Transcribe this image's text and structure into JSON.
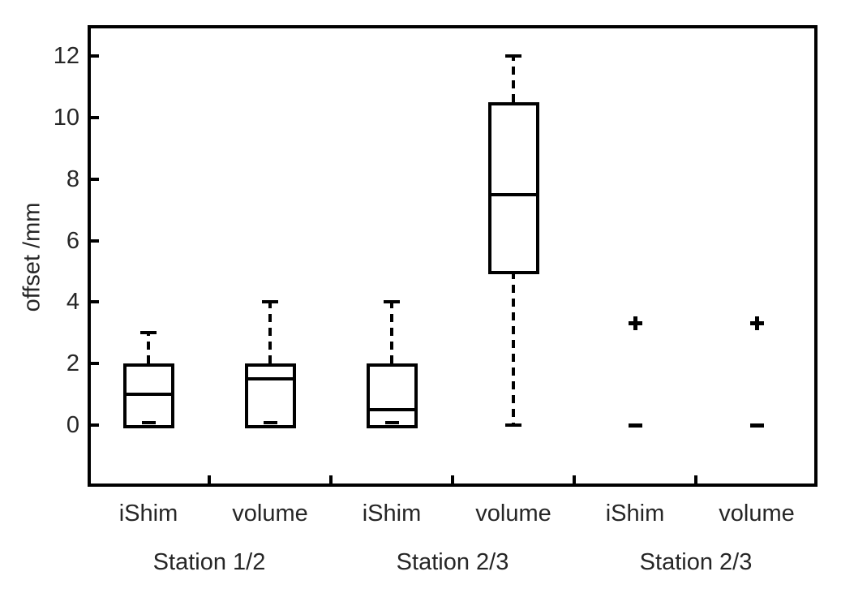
{
  "figure": {
    "background": "#ffffff",
    "line_color": "#000000",
    "text_color": "#262626"
  },
  "chart_data": {
    "type": "boxplot",
    "title": "",
    "ylabel": "offset /mm",
    "xlabel": "",
    "ylim": [
      -2,
      13
    ],
    "yticks": [
      0,
      2,
      4,
      6,
      8,
      10,
      12
    ],
    "grid": false,
    "legend": "none",
    "categories": [
      "iShim",
      "volume",
      "iShim",
      "volume",
      "iShim",
      "volume"
    ],
    "groups": [
      {
        "label": "Station 1/2",
        "span": [
          0,
          1
        ]
      },
      {
        "label": "Station 2/3",
        "span": [
          2,
          3
        ]
      },
      {
        "label": "Station 2/3",
        "span": [
          4,
          5
        ]
      }
    ],
    "series": [
      {
        "category": "iShim",
        "group": "Station 1/2",
        "style": "box",
        "whisker_low": 0,
        "q1": 0,
        "median": 1,
        "q3": 2,
        "whisker_high": 3
      },
      {
        "category": "volume",
        "group": "Station 1/2",
        "style": "box",
        "whisker_low": 0,
        "q1": 0,
        "median": 1.5,
        "q3": 2,
        "whisker_high": 4
      },
      {
        "category": "iShim",
        "group": "Station 2/3",
        "style": "box",
        "whisker_low": 0,
        "q1": 0,
        "median": 0.5,
        "q3": 2,
        "whisker_high": 4
      },
      {
        "category": "volume",
        "group": "Station 2/3",
        "style": "box",
        "whisker_low": 0,
        "q1": 5,
        "median": 7.5,
        "q3": 10.5,
        "whisker_high": 12
      },
      {
        "category": "iShim",
        "group": "Station 2/3",
        "style": "markers",
        "dash_marker": 0,
        "plus_marker": 3.3
      },
      {
        "category": "volume",
        "group": "Station 2/3",
        "style": "markers",
        "dash_marker": 0,
        "plus_marker": 3.3
      }
    ]
  }
}
